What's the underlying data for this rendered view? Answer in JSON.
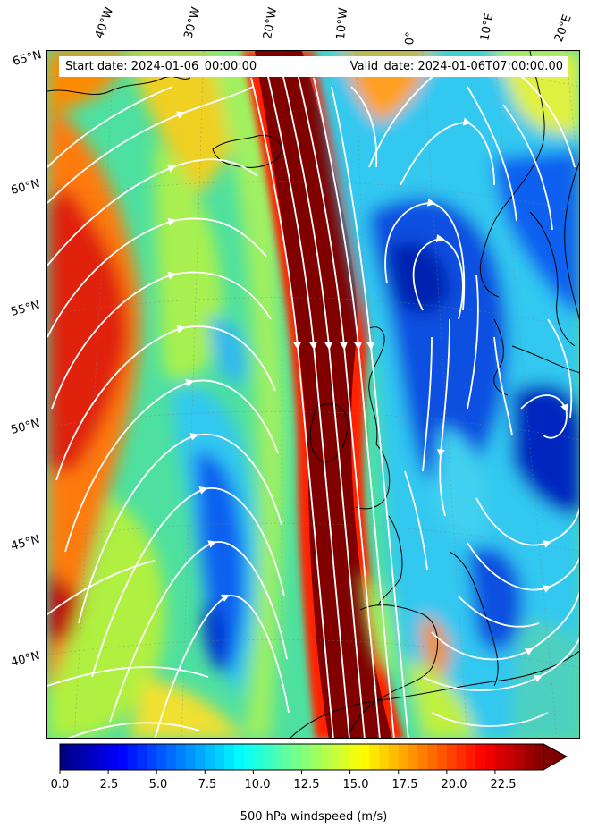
{
  "map": {
    "start_date": "Start date: 2024-01-06_00:00:00",
    "valid_date": "Valid_date: 2024-01-06T07:00:00.00",
    "longitude_labels": [
      "40°W",
      "30°W",
      "20°W",
      "10°W",
      "0°",
      "10°E",
      "20°E"
    ],
    "latitude_labels": [
      "65°N",
      "60°N",
      "55°N",
      "50°N",
      "45°N",
      "40°N"
    ],
    "overlay": "streamlines",
    "streamline_color": "#ffffff",
    "coastline_color": "#000000",
    "colormap": "jet"
  },
  "colorbar": {
    "label": "500 hPa windspeed (m/s)",
    "ticks": [
      "0.0",
      "2.5",
      "5.0",
      "7.5",
      "10.0",
      "12.5",
      "15.0",
      "17.5",
      "20.0",
      "22.5"
    ],
    "range": [
      0,
      25
    ],
    "extend": "max"
  }
}
